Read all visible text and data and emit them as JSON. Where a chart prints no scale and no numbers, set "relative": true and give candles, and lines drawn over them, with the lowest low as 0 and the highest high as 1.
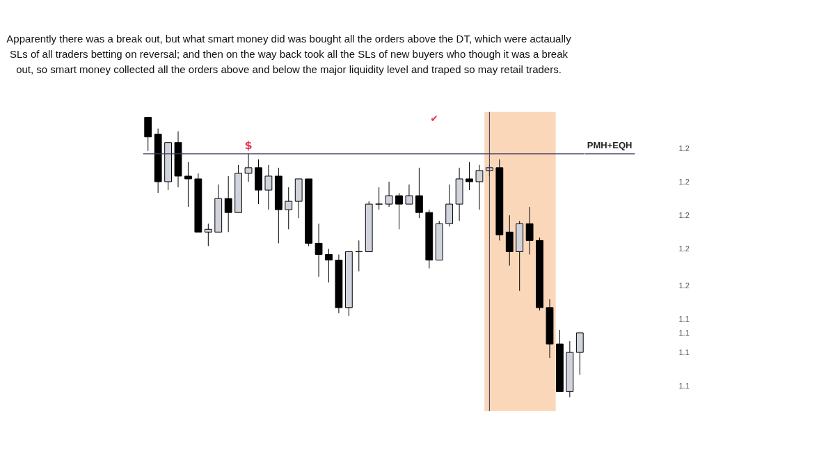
{
  "chart_data": {
    "type": "candlestick",
    "title": "Apparently there was a break out, but what smart money did was bought all the orders above the DT, which were actaually SLs of all traders betting on reversal; and then on the way back took all the SLs of new buyers who though it was a break out, so smart money collected all the orders above and below the major liquidity level and traped so may retail traders.",
    "relative": true,
    "categories": [
      null,
      null,
      null,
      null,
      null,
      null,
      null,
      null,
      null,
      null,
      null,
      null,
      null,
      null,
      null,
      null,
      null,
      null,
      null,
      null,
      null,
      null,
      null,
      null,
      null,
      null,
      null,
      null,
      null,
      null,
      null,
      null,
      null,
      null,
      null,
      null,
      null,
      null,
      null,
      null,
      null,
      null,
      null,
      null
    ],
    "ohlc": [
      [
        1.0,
        1.0,
        0.88,
        0.93
      ],
      [
        0.94,
        0.96,
        0.73,
        0.77
      ],
      [
        0.77,
        0.91,
        0.74,
        0.91
      ],
      [
        0.91,
        0.95,
        0.75,
        0.79
      ],
      [
        0.79,
        0.84,
        0.68,
        0.78
      ],
      [
        0.78,
        0.8,
        0.59,
        0.59
      ],
      [
        0.59,
        0.62,
        0.54,
        0.6
      ],
      [
        0.59,
        0.76,
        0.59,
        0.71
      ],
      [
        0.71,
        0.79,
        0.59,
        0.66
      ],
      [
        0.66,
        0.83,
        0.66,
        0.8
      ],
      [
        0.8,
        0.87,
        0.77,
        0.82
      ],
      [
        0.82,
        0.85,
        0.69,
        0.74
      ],
      [
        0.74,
        0.83,
        0.67,
        0.79
      ],
      [
        0.79,
        0.82,
        0.55,
        0.67
      ],
      [
        0.67,
        0.75,
        0.6,
        0.7
      ],
      [
        0.7,
        0.78,
        0.64,
        0.78
      ],
      [
        0.78,
        0.78,
        0.54,
        0.55
      ],
      [
        0.55,
        0.62,
        0.43,
        0.51
      ],
      [
        0.51,
        0.53,
        0.41,
        0.49
      ],
      [
        0.49,
        0.51,
        0.3,
        0.32
      ],
      [
        0.32,
        0.52,
        0.29,
        0.52
      ],
      [
        0.52,
        0.56,
        0.45,
        0.52
      ],
      [
        0.52,
        0.7,
        0.52,
        0.69
      ],
      [
        0.69,
        0.75,
        0.67,
        0.69
      ],
      [
        0.69,
        0.77,
        0.68,
        0.72
      ],
      [
        0.72,
        0.73,
        0.6,
        0.69
      ],
      [
        0.69,
        0.76,
        0.69,
        0.72
      ],
      [
        0.72,
        0.82,
        0.64,
        0.66
      ],
      [
        0.66,
        0.67,
        0.46,
        0.49
      ],
      [
        0.49,
        0.63,
        0.49,
        0.62
      ],
      [
        0.62,
        0.76,
        0.61,
        0.69
      ],
      [
        0.69,
        0.82,
        0.63,
        0.78
      ],
      [
        0.78,
        0.84,
        0.74,
        0.77
      ],
      [
        0.77,
        0.83,
        0.67,
        0.81
      ],
      [
        0.81,
        0.83,
        0.79,
        0.82
      ],
      [
        0.82,
        0.85,
        0.56,
        0.58
      ],
      [
        0.59,
        0.65,
        0.47,
        0.52
      ],
      [
        0.52,
        0.63,
        0.38,
        0.62
      ],
      [
        0.62,
        0.68,
        0.51,
        0.56
      ],
      [
        0.56,
        0.57,
        0.31,
        0.32
      ],
      [
        0.32,
        0.35,
        0.14,
        0.19
      ],
      [
        0.19,
        0.24,
        0.02,
        0.02
      ],
      [
        0.02,
        0.2,
        0.0,
        0.16
      ],
      [
        0.16,
        0.23,
        0.08,
        0.23
      ]
    ],
    "colors": [
      "#000000",
      "#000000",
      "#d1d4dc",
      "#000000",
      "#000000",
      "#000000",
      "#d1d4dc",
      "#d1d4dc",
      "#000000",
      "#d1d4dc",
      "#d1d4dc",
      "#000000",
      "#d1d4dc",
      "#000000",
      "#d1d4dc",
      "#d1d4dc",
      "#000000",
      "#000000",
      "#000000",
      "#000000",
      "#d1d4dc",
      "#000000",
      "#d1d4dc",
      "#000000",
      "#d1d4dc",
      "#000000",
      "#d1d4dc",
      "#000000",
      "#000000",
      "#d1d4dc",
      "#d1d4dc",
      "#d1d4dc",
      "#000000",
      "#d1d4dc",
      "#d1d4dc",
      "#000000",
      "#000000",
      "#d1d4dc",
      "#000000",
      "#000000",
      "#000000",
      "#000000",
      "#d1d4dc",
      "#d1d4dc"
    ],
    "tick_labels": false,
    "grid": false,
    "ref_lines": [
      {
        "axis": "y",
        "value": 0.87,
        "label": "PMH+EQH",
        "color": "#3b3b5c"
      }
    ],
    "annotations": [
      "$",
      "✔",
      "1.2",
      "1.2",
      "1.2",
      "1.2",
      "1.2",
      "1.1",
      "1.1",
      "1.1",
      "1.1"
    ]
  }
}
